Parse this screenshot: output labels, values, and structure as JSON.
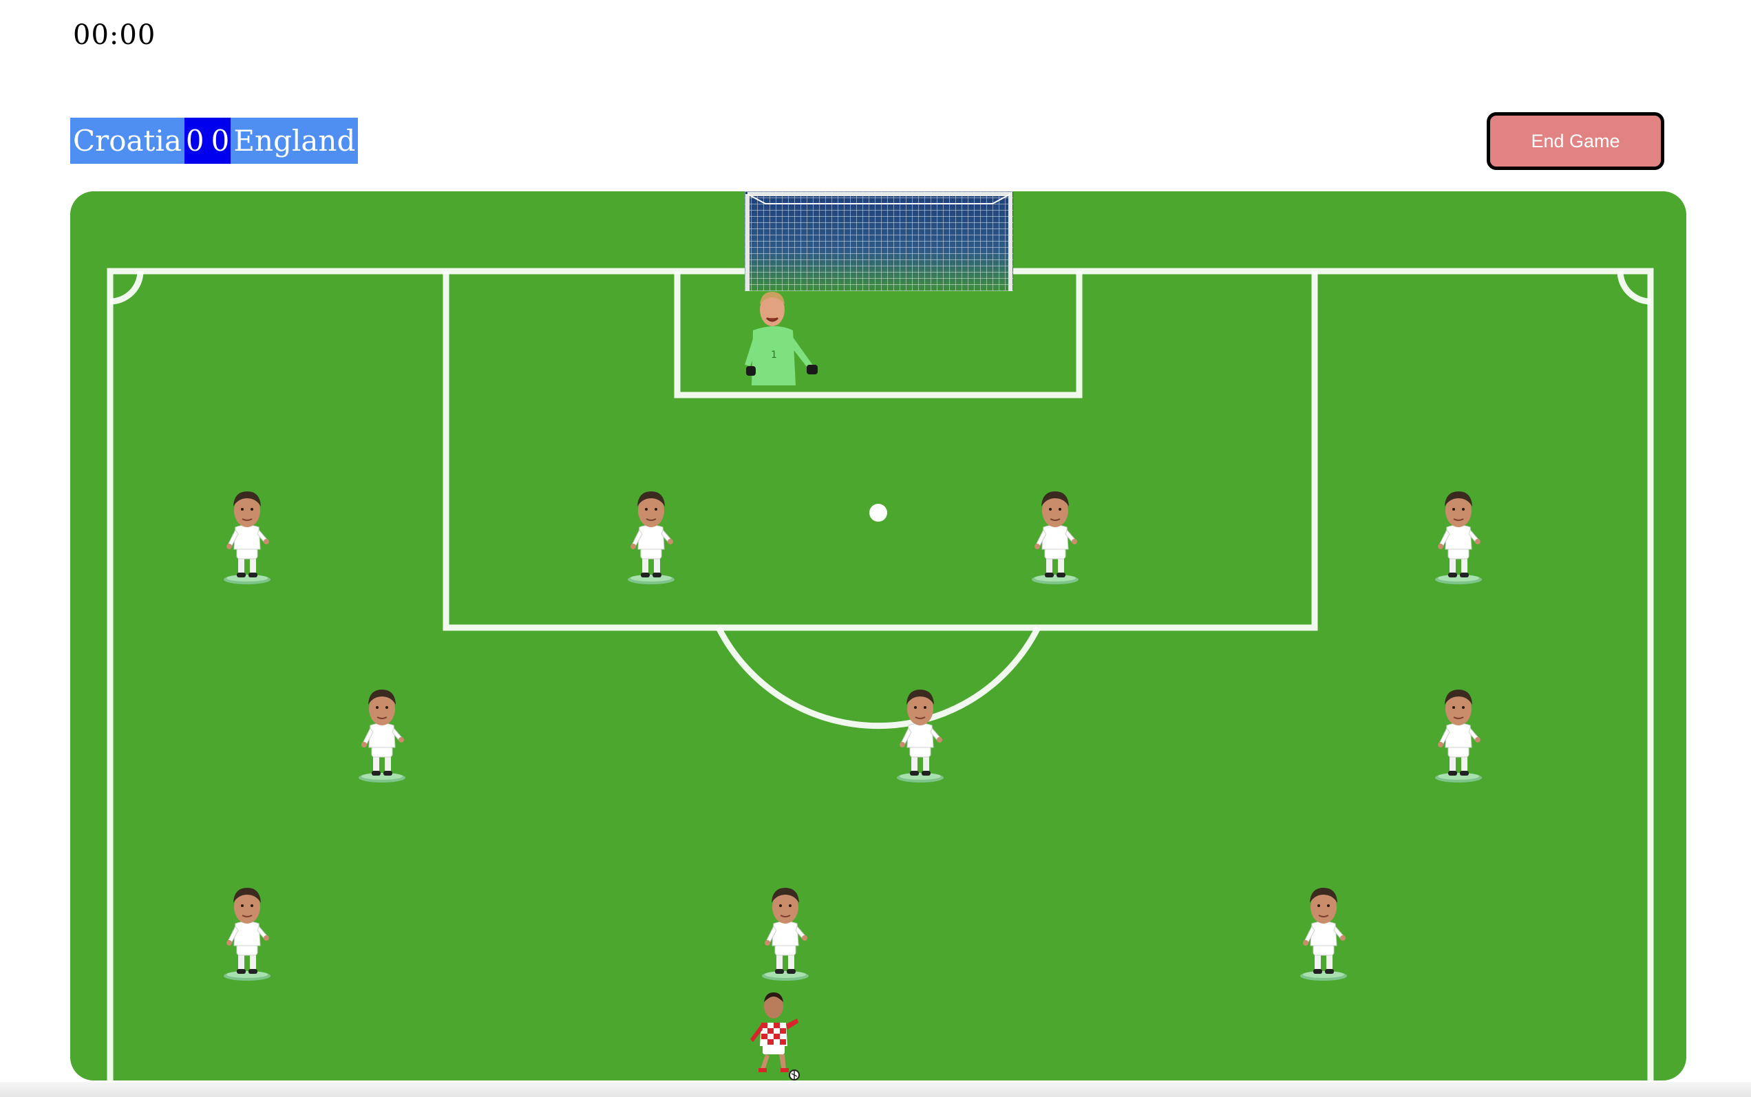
{
  "timer": "00:00",
  "scoreboard": {
    "home_team": "Croatia",
    "home_score": "0",
    "away_score": "0",
    "away_team": "England"
  },
  "end_button_label": "End Game",
  "colors": {
    "pitch": "#4ca72f",
    "home_team_bg": "#4f8ff2",
    "score_bg": "#0000ee",
    "end_button": "#e28383"
  },
  "icons": {
    "goal": "goal-net-icon",
    "goalkeeper": "goalkeeper-icon",
    "defender": "england-player-icon",
    "attacker": "croatia-player-icon"
  }
}
